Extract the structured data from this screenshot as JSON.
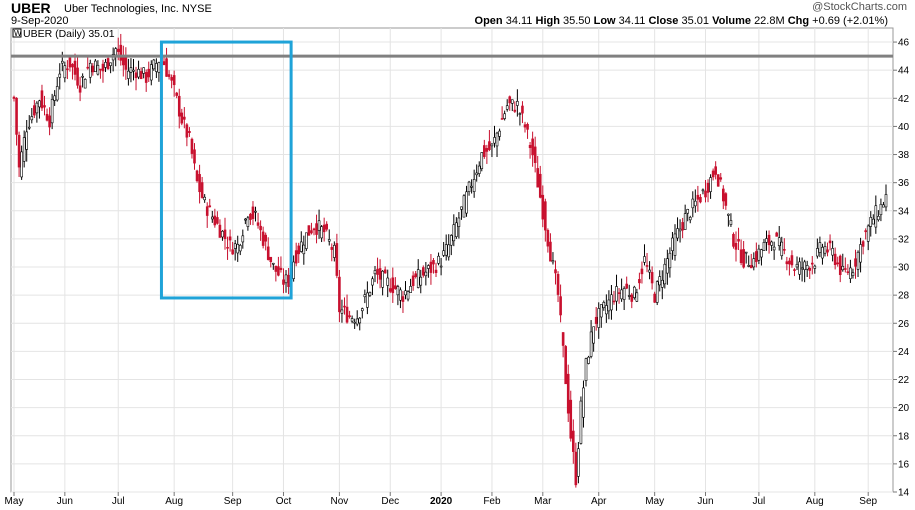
{
  "header": {
    "ticker": "UBER",
    "company": "Uber Technologies, Inc.",
    "exchange": "NYSE",
    "date": "9-Sep-2020",
    "watermark": "@StockCharts.com",
    "open_label": "Open",
    "open": "34.11",
    "high_label": "High",
    "high": "35.50",
    "low_label": "Low",
    "low": "34.11",
    "close_label": "Close",
    "close": "35.01",
    "volume_label": "Volume",
    "volume": "22.8M",
    "chg_label": "Chg",
    "chg": "+0.69 (+2.01%)"
  },
  "legend": {
    "text": "UBER (Daily) 35.01"
  },
  "colors": {
    "up": "#000000",
    "down": "#c8102e",
    "box": "#1fa3d8",
    "resistance": "#808080",
    "grid": "#e4e4e4"
  },
  "chart_data": {
    "type": "candlestick",
    "title": "UBER Uber Technologies, Inc. NYSE",
    "ylim": [
      14,
      47
    ],
    "y_ticks": [
      14,
      16,
      18,
      20,
      22,
      24,
      26,
      28,
      30,
      32,
      34,
      36,
      38,
      40,
      42,
      44,
      46
    ],
    "x_ticks": [
      "May",
      "Jun",
      "Jul",
      "Aug",
      "Sep",
      "Oct",
      "Nov",
      "Dec",
      "2020",
      "Feb",
      "Mar",
      "Apr",
      "May",
      "Jun",
      "Jul",
      "Aug",
      "Sep"
    ],
    "x_tick_index": [
      0,
      20,
      41,
      63,
      86,
      106,
      128,
      148,
      168,
      188,
      208,
      230,
      252,
      272,
      293,
      315,
      336
    ],
    "total_days": 343,
    "series": [
      {
        "approximate_close": [
          [
            0,
            42.0
          ],
          [
            2,
            37.0
          ],
          [
            5,
            40.0
          ],
          [
            10,
            42.0
          ],
          [
            14,
            40.5
          ],
          [
            18,
            44.0
          ],
          [
            22,
            44.5
          ],
          [
            26,
            43.0
          ],
          [
            30,
            44.5
          ],
          [
            35,
            44.0
          ],
          [
            40,
            45.5
          ],
          [
            44,
            44.0
          ],
          [
            48,
            44.0
          ],
          [
            52,
            43.5
          ],
          [
            56,
            44.5
          ],
          [
            58,
            45.0
          ],
          [
            60,
            44.0
          ],
          [
            63,
            42.5
          ],
          [
            66,
            40.5
          ],
          [
            69,
            39.0
          ],
          [
            72,
            36.0
          ],
          [
            75,
            34.5
          ],
          [
            80,
            33.0
          ],
          [
            85,
            31.5
          ],
          [
            88,
            31.5
          ],
          [
            92,
            34.0
          ],
          [
            95,
            33.5
          ],
          [
            98,
            32.0
          ],
          [
            102,
            30.0
          ],
          [
            106,
            29.0
          ],
          [
            108,
            29.0
          ],
          [
            110,
            30.5
          ],
          [
            114,
            32.0
          ],
          [
            118,
            33.0
          ],
          [
            122,
            32.5
          ],
          [
            126,
            31.0
          ],
          [
            128,
            27.0
          ],
          [
            132,
            26.5
          ],
          [
            135,
            26.5
          ],
          [
            139,
            28.0
          ],
          [
            142,
            29.5
          ],
          [
            146,
            29.0
          ],
          [
            150,
            28.5
          ],
          [
            153,
            28.0
          ],
          [
            157,
            29.0
          ],
          [
            161,
            29.5
          ],
          [
            165,
            30.0
          ],
          [
            168,
            30.5
          ],
          [
            171,
            31.5
          ],
          [
            174,
            33.0
          ],
          [
            177,
            34.5
          ],
          [
            180,
            36.0
          ],
          [
            184,
            38.0
          ],
          [
            188,
            38.5
          ],
          [
            191,
            40.0
          ],
          [
            194,
            41.5
          ],
          [
            198,
            41.5
          ],
          [
            201,
            40.0
          ],
          [
            204,
            38.0
          ],
          [
            207,
            35.0
          ],
          [
            209,
            33.0
          ],
          [
            211,
            31.0
          ],
          [
            214,
            28.0
          ],
          [
            217,
            22.0
          ],
          [
            219,
            18.0
          ],
          [
            221,
            15.0
          ],
          [
            223,
            20.0
          ],
          [
            225,
            23.0
          ],
          [
            228,
            26.0
          ],
          [
            232,
            27.0
          ],
          [
            236,
            28.0
          ],
          [
            240,
            28.5
          ],
          [
            244,
            28.0
          ],
          [
            248,
            30.5
          ],
          [
            252,
            28.0
          ],
          [
            256,
            30.0
          ],
          [
            260,
            32.0
          ],
          [
            264,
            33.5
          ],
          [
            268,
            34.5
          ],
          [
            272,
            35.5
          ],
          [
            276,
            37.0
          ],
          [
            279,
            35.0
          ],
          [
            283,
            32.0
          ],
          [
            287,
            30.5
          ],
          [
            291,
            30.5
          ],
          [
            295,
            31.5
          ],
          [
            299,
            32.0
          ],
          [
            303,
            31.0
          ],
          [
            307,
            30.0
          ],
          [
            311,
            30.0
          ],
          [
            315,
            30.5
          ],
          [
            318,
            31.5
          ],
          [
            322,
            31.0
          ],
          [
            326,
            29.5
          ],
          [
            330,
            30.0
          ],
          [
            334,
            32.0
          ],
          [
            338,
            33.5
          ],
          [
            341,
            34.3
          ],
          [
            343,
            35.0
          ]
        ]
      }
    ],
    "annotations": {
      "resistance_line_y": 45.0,
      "highlight_box": {
        "x_start": 58,
        "x_end": 109,
        "y_low": 27.8,
        "y_high": 46.0
      }
    }
  }
}
